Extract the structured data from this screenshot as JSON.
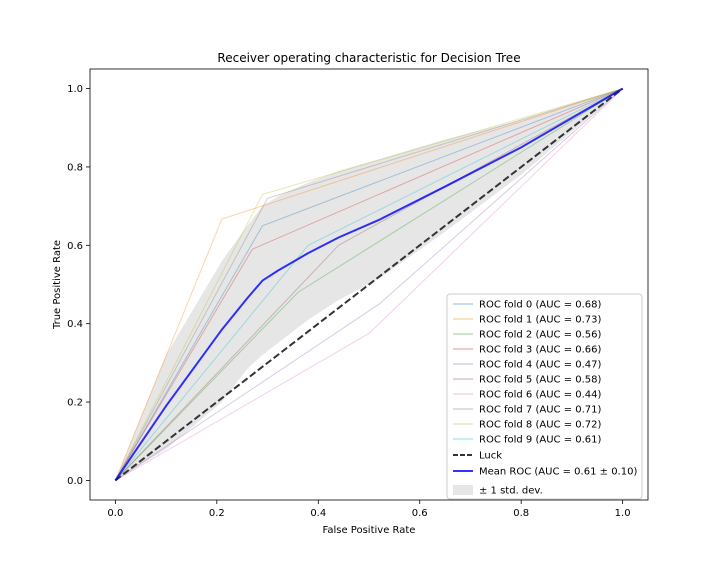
{
  "chart_data": {
    "type": "line",
    "title": "Receiver operating characteristic for Decision Tree",
    "xlabel": "False Positive Rate",
    "ylabel": "True Positive Rate",
    "xlim": [
      -0.05,
      1.05
    ],
    "ylim": [
      -0.05,
      1.05
    ],
    "xticks": [
      0.0,
      0.2,
      0.4,
      0.6,
      0.8,
      1.0
    ],
    "yticks": [
      0.0,
      0.2,
      0.4,
      0.6,
      0.8,
      1.0
    ],
    "xtick_labels": [
      "0.0",
      "0.2",
      "0.4",
      "0.6",
      "0.8",
      "1.0"
    ],
    "ytick_labels": [
      "0.0",
      "0.2",
      "0.4",
      "0.6",
      "0.8",
      "1.0"
    ],
    "grid": false,
    "legend_position": "lower-right",
    "series": [
      {
        "name": "ROC fold 0 (AUC = 0.68)",
        "color": "#1f77b4",
        "x": [
          0,
          0.29,
          1
        ],
        "y": [
          0,
          0.65,
          1
        ]
      },
      {
        "name": "ROC fold 1 (AUC = 0.73)",
        "color": "#ff7f0e",
        "x": [
          0,
          0.21,
          1
        ],
        "y": [
          0,
          0.667,
          1
        ]
      },
      {
        "name": "ROC fold 2 (AUC = 0.56)",
        "color": "#2ca02c",
        "x": [
          0,
          0.36,
          1
        ],
        "y": [
          0,
          0.48,
          1
        ]
      },
      {
        "name": "ROC fold 3 (AUC = 0.66)",
        "color": "#d62728",
        "x": [
          0,
          0.27,
          1
        ],
        "y": [
          0,
          0.59,
          1
        ]
      },
      {
        "name": "ROC fold 4 (AUC = 0.47)",
        "color": "#9467bd",
        "x": [
          0,
          0.52,
          1
        ],
        "y": [
          0,
          0.45,
          1
        ]
      },
      {
        "name": "ROC fold 5 (AUC = 0.58)",
        "color": "#8c564b",
        "x": [
          0,
          0.44,
          1
        ],
        "y": [
          0,
          0.6,
          1
        ]
      },
      {
        "name": "ROC fold 6 (AUC = 0.44)",
        "color": "#e377c2",
        "x": [
          0,
          0.5,
          1
        ],
        "y": [
          0,
          0.375,
          1
        ]
      },
      {
        "name": "ROC fold 7 (AUC = 0.71)",
        "color": "#7f7f7f",
        "x": [
          0,
          0.3,
          1
        ],
        "y": [
          0,
          0.72,
          1
        ]
      },
      {
        "name": "ROC fold 8 (AUC = 0.72)",
        "color": "#bcbd22",
        "x": [
          0,
          0.29,
          1
        ],
        "y": [
          0,
          0.73,
          1
        ]
      },
      {
        "name": "ROC fold 9 (AUC = 0.61)",
        "color": "#17becf",
        "x": [
          0,
          0.38,
          1
        ],
        "y": [
          0,
          0.6,
          1
        ]
      }
    ],
    "luck": {
      "name": "Luck",
      "color": "#333333",
      "x": [
        0,
        1
      ],
      "y": [
        0,
        1
      ]
    },
    "mean": {
      "name": "Mean ROC (AUC = 0.61 ± 0.10)",
      "color": "#0000ff",
      "x": [
        0,
        0.1,
        0.21,
        0.26,
        0.29,
        0.32,
        0.38,
        0.44,
        0.52,
        0.65,
        0.8,
        1.0
      ],
      "y": [
        0,
        0.19,
        0.385,
        0.465,
        0.51,
        0.535,
        0.58,
        0.62,
        0.665,
        0.75,
        0.85,
        1.0
      ]
    },
    "std_band": {
      "name": "± 1 std. dev.",
      "color": "#808080",
      "x": [
        0,
        0.1,
        0.21,
        0.26,
        0.29,
        0.32,
        0.38,
        0.44,
        0.52,
        0.65,
        0.8,
        1.0
      ],
      "upper": [
        0,
        0.32,
        0.56,
        0.65,
        0.7,
        0.725,
        0.76,
        0.79,
        0.82,
        0.87,
        0.92,
        1.0
      ],
      "lower": [
        0,
        0.08,
        0.2,
        0.285,
        0.32,
        0.35,
        0.41,
        0.46,
        0.515,
        0.635,
        0.78,
        1.0
      ]
    }
  }
}
